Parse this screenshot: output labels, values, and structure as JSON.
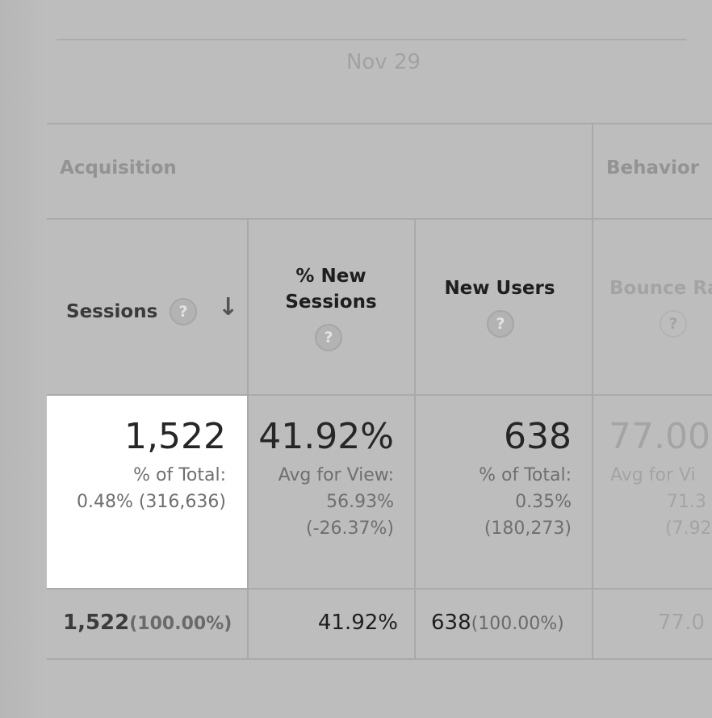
{
  "date_label": "Nov 29",
  "groups": {
    "acquisition": "Acquisition",
    "behavior": "Behavior"
  },
  "columns": {
    "sessions": "Sessions",
    "new_sessions_line1": "% New",
    "new_sessions_line2": "Sessions",
    "new_users": "New Users",
    "bounce_rate": "Bounce Ra"
  },
  "help_glyph": "?",
  "sort_arrow": "↓",
  "row": {
    "sessions": {
      "value": "1,522",
      "sub1": "% of Total:",
      "sub2": "0.48% (316,636)"
    },
    "new_sessions": {
      "value": "41.92%",
      "sub1": "Avg for View:",
      "sub2": "56.93%",
      "sub3": "(-26.37%)"
    },
    "new_users": {
      "value": "638",
      "sub1": "% of Total:",
      "sub2": "0.35%",
      "sub3": "(180,273)"
    },
    "bounce_rate": {
      "value": "77.00",
      "sub1": "Avg for Vi",
      "sub2": "71.3",
      "sub3": "(7.92"
    }
  },
  "totals": {
    "sessions": {
      "value": "1,522",
      "pct": "(100.00%)"
    },
    "new_sessions": {
      "value": "41.92%"
    },
    "new_users": {
      "value": "638",
      "pct": "(100.00%)"
    },
    "bounce_rate": {
      "value": "77.0"
    }
  }
}
